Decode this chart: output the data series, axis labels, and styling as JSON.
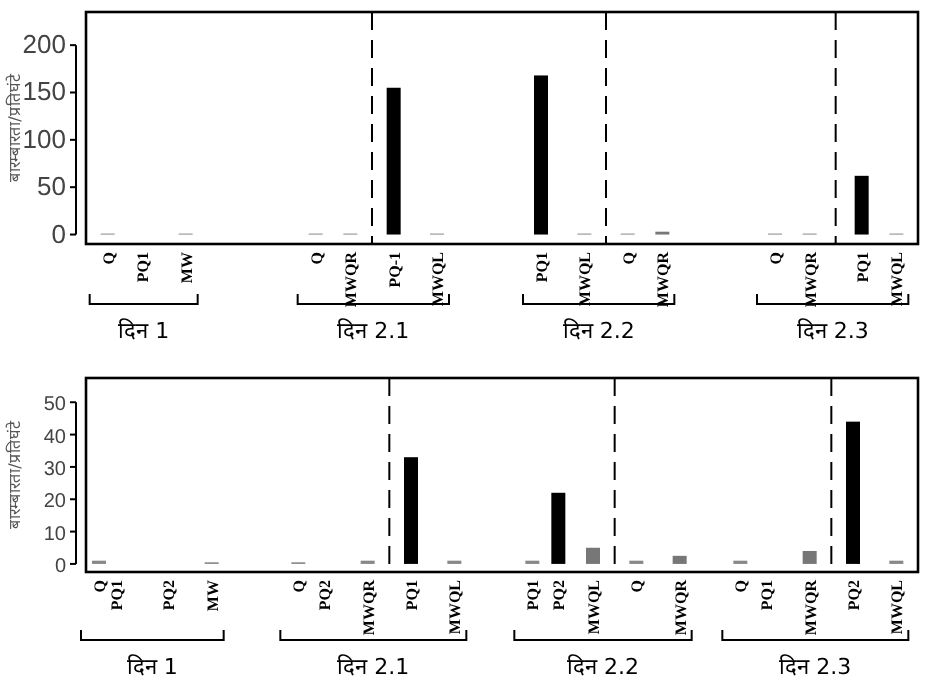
{
  "chart_data": [
    {
      "type": "bar",
      "ylabel": "बारम्बारता/प्रतिघंटे",
      "ylim": [
        -10,
        235
      ],
      "yticks": [
        0,
        50,
        100,
        150,
        200
      ],
      "categories": [
        null,
        null,
        "Q",
        null,
        null,
        null,
        "PQ1",
        null,
        null,
        null,
        null,
        "MW",
        null,
        null,
        null,
        null,
        null,
        null,
        null,
        null,
        null,
        null,
        null,
        null,
        null,
        null,
        "Q",
        null,
        null,
        null,
        "MWQR",
        null,
        null,
        null,
        null,
        "PQ-1",
        null,
        null,
        null,
        null,
        "MWQL",
        null,
        null,
        null,
        null,
        null,
        null,
        null,
        null,
        null,
        null,
        null,
        "PQ1",
        null,
        null,
        null,
        null,
        "MWQL",
        null,
        null,
        null,
        null,
        "Q",
        null,
        null,
        null,
        "MWQR",
        null,
        null,
        null,
        null,
        null,
        null,
        null,
        null,
        null,
        null,
        null,
        null,
        "Q",
        null,
        null,
        null,
        "MWQR",
        null,
        null,
        null,
        null,
        null,
        "PQ1",
        null,
        null,
        null,
        "MWQL",
        null,
        null
      ],
      "series": [
        {
          "values": [
            null,
            null,
            1,
            null,
            null,
            null,
            null,
            null,
            null,
            null,
            null,
            1,
            null,
            null,
            null,
            null,
            null,
            null,
            null,
            null,
            null,
            null,
            null,
            null,
            null,
            null,
            1,
            null,
            null,
            null,
            1,
            null,
            null,
            null,
            null,
            155,
            null,
            null,
            null,
            null,
            1,
            null,
            null,
            null,
            null,
            null,
            null,
            null,
            null,
            null,
            null,
            null,
            168,
            null,
            null,
            null,
            null,
            1,
            null,
            null,
            null,
            null,
            1,
            null,
            null,
            null,
            3,
            null,
            null,
            null,
            null,
            null,
            null,
            null,
            null,
            null,
            null,
            null,
            null,
            1,
            null,
            null,
            null,
            1,
            null,
            null,
            null,
            null,
            null,
            62,
            null,
            null,
            null,
            1,
            null,
            null
          ],
          "colors": [
            null,
            null,
            "#888888",
            null,
            null,
            null,
            null,
            null,
            null,
            null,
            null,
            "#888888",
            null,
            null,
            null,
            null,
            null,
            null,
            null,
            null,
            null,
            null,
            null,
            null,
            null,
            null,
            "#888888",
            null,
            null,
            null,
            "#888888",
            null,
            null,
            null,
            null,
            "#000000",
            null,
            null,
            null,
            null,
            "#888888",
            null,
            null,
            null,
            null,
            null,
            null,
            null,
            null,
            null,
            null,
            null,
            "#000000",
            null,
            null,
            null,
            null,
            "#888888",
            null,
            null,
            null,
            null,
            "#888888",
            null,
            null,
            null,
            "#777777",
            null,
            null,
            null,
            null,
            null,
            null,
            null,
            null,
            null,
            null,
            null,
            null,
            "#888888",
            null,
            null,
            null,
            "#888888",
            null,
            null,
            null,
            null,
            null,
            "#000000",
            null,
            null,
            null,
            "#888888",
            null,
            null
          ]
        }
      ],
      "annotations": [
        "दिन 1",
        "दिन 2.1",
        "दिन 2.2",
        "दिन 2.3"
      ]
    },
    {
      "type": "bar",
      "ylabel": "बारम्बारता/प्रतिघंटे",
      "ylim": [
        -2.5,
        57.5
      ],
      "yticks": [
        0,
        10,
        20,
        30,
        40,
        50
      ],
      "categories": [
        null,
        "Q",
        null,
        "PQ1",
        null,
        null,
        null,
        null,
        null,
        "PQ2",
        null,
        null,
        null,
        null,
        "MW",
        null,
        null,
        null,
        null,
        null,
        null,
        null,
        null,
        null,
        "Q",
        null,
        null,
        "PQ2",
        null,
        null,
        null,
        null,
        "MWQR",
        null,
        null,
        null,
        null,
        "PQ1",
        null,
        null,
        null,
        null,
        "MWQL",
        null,
        null,
        null,
        null,
        null,
        null,
        null,
        null,
        "PQ1",
        null,
        null,
        "PQ2",
        null,
        null,
        null,
        "MWQL",
        null,
        null,
        null,
        null,
        "Q",
        null,
        null,
        null,
        null,
        "MWQR",
        null,
        null,
        null,
        null,
        null,
        null,
        "Q",
        null,
        null,
        "PQ1",
        null,
        null,
        null,
        null,
        "MWQR",
        null,
        null,
        null,
        null,
        "PQ2",
        null,
        null,
        null,
        null,
        "MWQL",
        null,
        null
      ],
      "series": [
        {
          "values": [
            null,
            1,
            null,
            null,
            null,
            null,
            null,
            null,
            null,
            null,
            null,
            null,
            null,
            null,
            0.5,
            null,
            null,
            null,
            null,
            null,
            null,
            null,
            null,
            null,
            0.5,
            null,
            null,
            null,
            null,
            null,
            null,
            null,
            1,
            null,
            null,
            null,
            null,
            33,
            null,
            null,
            null,
            null,
            1,
            null,
            null,
            null,
            null,
            null,
            null,
            null,
            null,
            1,
            null,
            null,
            22,
            null,
            null,
            null,
            5,
            null,
            null,
            null,
            null,
            1,
            null,
            null,
            null,
            null,
            2.5,
            null,
            null,
            null,
            null,
            null,
            null,
            1,
            null,
            null,
            null,
            null,
            null,
            null,
            null,
            4,
            null,
            null,
            null,
            null,
            44,
            null,
            null,
            null,
            null,
            1,
            null,
            null
          ],
          "colors": [
            null,
            "#888888",
            null,
            null,
            null,
            null,
            null,
            null,
            null,
            null,
            null,
            null,
            null,
            null,
            "#888888",
            null,
            null,
            null,
            null,
            null,
            null,
            null,
            null,
            null,
            "#888888",
            null,
            null,
            null,
            null,
            null,
            null,
            null,
            "#888888",
            null,
            null,
            null,
            null,
            "#000000",
            null,
            null,
            null,
            null,
            "#888888",
            null,
            null,
            null,
            null,
            null,
            null,
            null,
            null,
            "#888888",
            null,
            null,
            "#000000",
            null,
            null,
            null,
            "#777777",
            null,
            null,
            null,
            null,
            "#888888",
            null,
            null,
            null,
            null,
            "#777777",
            null,
            null,
            null,
            null,
            null,
            null,
            "#888888",
            null,
            null,
            null,
            null,
            null,
            null,
            null,
            "#777777",
            null,
            null,
            null,
            null,
            "#000000",
            null,
            null,
            null,
            null,
            "#888888",
            null,
            null
          ]
        }
      ],
      "annotations": [
        "दिन 1",
        "दिन 2.1",
        "दिन 2.2",
        "दिन 2.3"
      ]
    }
  ]
}
